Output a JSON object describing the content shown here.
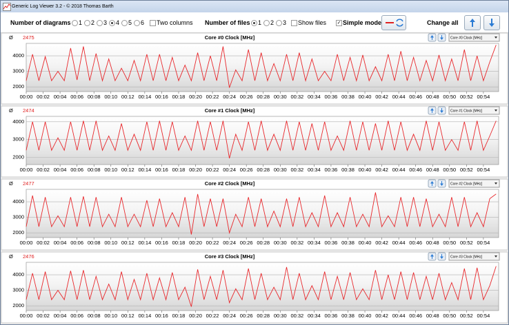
{
  "window": {
    "title": "Generic Log Viewer 3.2 - © 2018 Thomas Barth"
  },
  "toolbar": {
    "diagrams_label": "Number of diagrams",
    "diagram_options": [
      "1",
      "2",
      "3",
      "4",
      "5",
      "6"
    ],
    "two_columns": "Two columns",
    "files_label": "Number of files",
    "file_options": [
      "1",
      "2",
      "3"
    ],
    "show_files": "Show files",
    "simple_mode": "Simple mode",
    "change_all": "Change all"
  },
  "chart_data": [
    {
      "type": "line",
      "avg_symbol": "Ø",
      "average": 2475,
      "title": "Core #0 Clock [MHz]",
      "selector": "Core #0 Clock [MHz]",
      "color": "#e8262a",
      "x": [
        0,
        0.75,
        1.5,
        2.25,
        3,
        3.75,
        4.5,
        5.25,
        6,
        6.75,
        7.5,
        8.25,
        9,
        9.75,
        10.5,
        11.25,
        12,
        12.75,
        13.5,
        14.25,
        15,
        15.75,
        16.5,
        17.25,
        18,
        18.75,
        19.5,
        20.25,
        21,
        21.75,
        22.5,
        23.25,
        24,
        24.75,
        25.5,
        26.25,
        27,
        27.75,
        28.5,
        29.25,
        30,
        30.75,
        31.5,
        32.25,
        33,
        33.75,
        34.5,
        35.25,
        36,
        36.75,
        37.5,
        38.25,
        39,
        39.75,
        40.5,
        41.25,
        42,
        42.75,
        43.5,
        44.25,
        45,
        45.75,
        46.5,
        47.25,
        48,
        48.75,
        49.5,
        50.25,
        51,
        51.75,
        52.5,
        53.25,
        54,
        54.75,
        55.5
      ],
      "values": [
        2400,
        4100,
        2400,
        3950,
        2400,
        3000,
        2400,
        4500,
        2450,
        4600,
        2400,
        4150,
        2400,
        3800,
        2400,
        3200,
        2400,
        3700,
        2400,
        4100,
        2400,
        4100,
        2400,
        3900,
        2400,
        3400,
        2400,
        4200,
        2400,
        4000,
        2400,
        4600,
        1950,
        3100,
        2400,
        4400,
        2400,
        4200,
        2400,
        3500,
        2400,
        4100,
        2400,
        4200,
        2400,
        3800,
        2400,
        3000,
        2400,
        4100,
        2400,
        3900,
        2400,
        4050,
        2400,
        3300,
        2400,
        4100,
        2400,
        4300,
        2400,
        3900,
        2400,
        3700,
        2400,
        4050,
        2400,
        3800,
        2400,
        4400,
        2400,
        4000,
        2400,
        3600,
        4700
      ],
      "xlim": [
        0,
        55.8
      ],
      "ylim": [
        1700,
        4800
      ],
      "yticks": [
        2000,
        3000,
        4000
      ],
      "xticks": [
        {
          "value": 0,
          "label": "00:00"
        },
        {
          "value": 2,
          "label": "00:02"
        },
        {
          "value": 4,
          "label": "00:04"
        },
        {
          "value": 6,
          "label": "00:06"
        },
        {
          "value": 8,
          "label": "00:08"
        },
        {
          "value": 10,
          "label": "00:10"
        },
        {
          "value": 12,
          "label": "00:12"
        },
        {
          "value": 14,
          "label": "00:14"
        },
        {
          "value": 16,
          "label": "00:16"
        },
        {
          "value": 18,
          "label": "00:18"
        },
        {
          "value": 20,
          "label": "00:20"
        },
        {
          "value": 22,
          "label": "00:22"
        },
        {
          "value": 24,
          "label": "00:24"
        },
        {
          "value": 26,
          "label": "00:26"
        },
        {
          "value": 28,
          "label": "00:28"
        },
        {
          "value": 30,
          "label": "00:30"
        },
        {
          "value": 32,
          "label": "00:32"
        },
        {
          "value": 34,
          "label": "00:34"
        },
        {
          "value": 36,
          "label": "00:36"
        },
        {
          "value": 38,
          "label": "00:38"
        },
        {
          "value": 40,
          "label": "00:40"
        },
        {
          "value": 42,
          "label": "00:42"
        },
        {
          "value": 44,
          "label": "00:44"
        },
        {
          "value": 46,
          "label": "00:46"
        },
        {
          "value": 48,
          "label": "00:48"
        },
        {
          "value": 50,
          "label": "00:50"
        },
        {
          "value": 52,
          "label": "00:52"
        },
        {
          "value": 54,
          "label": "00:54"
        }
      ],
      "grid": true
    },
    {
      "type": "line",
      "avg_symbol": "Ø",
      "average": 2474,
      "title": "Core #1 Clock [MHz]",
      "selector": "Core #1 Clock [MHz]",
      "color": "#e8262a",
      "x": [
        0,
        0.75,
        1.5,
        2.25,
        3,
        3.75,
        4.5,
        5.25,
        6,
        6.75,
        7.5,
        8.25,
        9,
        9.75,
        10.5,
        11.25,
        12,
        12.75,
        13.5,
        14.25,
        15,
        15.75,
        16.5,
        17.25,
        18,
        18.75,
        19.5,
        20.25,
        21,
        21.75,
        22.5,
        23.25,
        24,
        24.75,
        25.5,
        26.25,
        27,
        27.75,
        28.5,
        29.25,
        30,
        30.75,
        31.5,
        32.25,
        33,
        33.75,
        34.5,
        35.25,
        36,
        36.75,
        37.5,
        38.25,
        39,
        39.75,
        40.5,
        41.25,
        42,
        42.75,
        43.5,
        44.25,
        45,
        45.75,
        46.5,
        47.25,
        48,
        48.75,
        49.5,
        50.25,
        51,
        51.75,
        52.5,
        53.25,
        54,
        54.75,
        55.5
      ],
      "values": [
        2400,
        4000,
        2400,
        4000,
        2400,
        3100,
        2400,
        4000,
        2400,
        4050,
        2400,
        4050,
        2400,
        3200,
        2400,
        3900,
        2400,
        3300,
        2400,
        4000,
        2400,
        4050,
        2400,
        4000,
        2400,
        3200,
        2400,
        4050,
        2400,
        4000,
        2400,
        4050,
        1950,
        3300,
        2400,
        4000,
        2400,
        4050,
        2400,
        3300,
        2400,
        4050,
        2400,
        4000,
        2400,
        3900,
        2400,
        4000,
        2400,
        3200,
        2400,
        4050,
        2400,
        4000,
        2400,
        3900,
        2400,
        4050,
        2400,
        4000,
        2400,
        3300,
        2400,
        4050,
        2400,
        4000,
        2400,
        3000,
        2400,
        4000,
        2400,
        4050,
        2400,
        3200,
        4050
      ],
      "xlim": [
        0,
        55.8
      ],
      "ylim": [
        1600,
        4300
      ],
      "yticks": [
        2000,
        3000,
        4000
      ],
      "xticks": [
        {
          "value": 0,
          "label": "00:00"
        },
        {
          "value": 2,
          "label": "00:02"
        },
        {
          "value": 4,
          "label": "00:04"
        },
        {
          "value": 6,
          "label": "00:06"
        },
        {
          "value": 8,
          "label": "00:08"
        },
        {
          "value": 10,
          "label": "00:10"
        },
        {
          "value": 12,
          "label": "00:12"
        },
        {
          "value": 14,
          "label": "00:14"
        },
        {
          "value": 16,
          "label": "00:16"
        },
        {
          "value": 18,
          "label": "00:18"
        },
        {
          "value": 20,
          "label": "00:20"
        },
        {
          "value": 22,
          "label": "00:22"
        },
        {
          "value": 24,
          "label": "00:24"
        },
        {
          "value": 26,
          "label": "00:26"
        },
        {
          "value": 28,
          "label": "00:28"
        },
        {
          "value": 30,
          "label": "00:30"
        },
        {
          "value": 32,
          "label": "00:32"
        },
        {
          "value": 34,
          "label": "00:34"
        },
        {
          "value": 36,
          "label": "00:36"
        },
        {
          "value": 38,
          "label": "00:38"
        },
        {
          "value": 40,
          "label": "00:40"
        },
        {
          "value": 42,
          "label": "00:42"
        },
        {
          "value": 44,
          "label": "00:44"
        },
        {
          "value": 46,
          "label": "00:46"
        },
        {
          "value": 48,
          "label": "00:48"
        },
        {
          "value": 50,
          "label": "00:50"
        },
        {
          "value": 52,
          "label": "00:52"
        },
        {
          "value": 54,
          "label": "00:54"
        }
      ],
      "grid": true
    },
    {
      "type": "line",
      "avg_symbol": "Ø",
      "average": 2477,
      "title": "Core #2 Clock [MHz]",
      "selector": "Core #2 Clock [MHz]",
      "color": "#e8262a",
      "x": [
        0,
        0.75,
        1.5,
        2.25,
        3,
        3.75,
        4.5,
        5.25,
        6,
        6.75,
        7.5,
        8.25,
        9,
        9.75,
        10.5,
        11.25,
        12,
        12.75,
        13.5,
        14.25,
        15,
        15.75,
        16.5,
        17.25,
        18,
        18.75,
        19.5,
        20.25,
        21,
        21.75,
        22.5,
        23.25,
        24,
        24.75,
        25.5,
        26.25,
        27,
        27.75,
        28.5,
        29.25,
        30,
        30.75,
        31.5,
        32.25,
        33,
        33.75,
        34.5,
        35.25,
        36,
        36.75,
        37.5,
        38.25,
        39,
        39.75,
        40.5,
        41.25,
        42,
        42.75,
        43.5,
        44.25,
        45,
        45.75,
        46.5,
        47.25,
        48,
        48.75,
        49.5,
        50.25,
        51,
        51.75,
        52.5,
        53.25,
        54,
        54.75,
        55.5
      ],
      "values": [
        2400,
        4400,
        2400,
        4300,
        2400,
        3100,
        2400,
        4300,
        2400,
        4350,
        2400,
        4300,
        2400,
        3200,
        2400,
        4300,
        2400,
        3200,
        2400,
        4100,
        2400,
        4200,
        2400,
        3300,
        2400,
        4300,
        1900,
        4500,
        2400,
        4200,
        2400,
        4200,
        2000,
        3200,
        2400,
        4300,
        2400,
        4200,
        2400,
        3400,
        2400,
        4200,
        2400,
        4300,
        2400,
        3300,
        2400,
        4400,
        2400,
        3300,
        2400,
        4300,
        2400,
        3200,
        2400,
        4600,
        2400,
        3100,
        2400,
        4300,
        2400,
        4300,
        2400,
        4200,
        2400,
        3200,
        2400,
        4300,
        2400,
        4300,
        2400,
        3300,
        2400,
        4200,
        4500
      ],
      "xlim": [
        0,
        55.8
      ],
      "ylim": [
        1700,
        4800
      ],
      "yticks": [
        2000,
        3000,
        4000
      ],
      "xticks": [
        {
          "value": 0,
          "label": "00:00"
        },
        {
          "value": 2,
          "label": "00:02"
        },
        {
          "value": 4,
          "label": "00:04"
        },
        {
          "value": 6,
          "label": "00:06"
        },
        {
          "value": 8,
          "label": "00:08"
        },
        {
          "value": 10,
          "label": "00:10"
        },
        {
          "value": 12,
          "label": "00:12"
        },
        {
          "value": 14,
          "label": "00:14"
        },
        {
          "value": 16,
          "label": "00:16"
        },
        {
          "value": 18,
          "label": "00:18"
        },
        {
          "value": 20,
          "label": "00:20"
        },
        {
          "value": 22,
          "label": "00:22"
        },
        {
          "value": 24,
          "label": "00:24"
        },
        {
          "value": 26,
          "label": "00:26"
        },
        {
          "value": 28,
          "label": "00:28"
        },
        {
          "value": 30,
          "label": "00:30"
        },
        {
          "value": 32,
          "label": "00:32"
        },
        {
          "value": 34,
          "label": "00:34"
        },
        {
          "value": 36,
          "label": "00:36"
        },
        {
          "value": 38,
          "label": "00:38"
        },
        {
          "value": 40,
          "label": "00:40"
        },
        {
          "value": 42,
          "label": "00:42"
        },
        {
          "value": 44,
          "label": "00:44"
        },
        {
          "value": 46,
          "label": "00:46"
        },
        {
          "value": 48,
          "label": "00:48"
        },
        {
          "value": 50,
          "label": "00:50"
        },
        {
          "value": 52,
          "label": "00:52"
        },
        {
          "value": 54,
          "label": "00:54"
        }
      ],
      "grid": true
    },
    {
      "type": "line",
      "avg_symbol": "Ø",
      "average": 2476,
      "title": "Core #3 Clock [MHz]",
      "selector": "Core #3 Clock [MHz]",
      "color": "#e8262a",
      "x": [
        0,
        0.75,
        1.5,
        2.25,
        3,
        3.75,
        4.5,
        5.25,
        6,
        6.75,
        7.5,
        8.25,
        9,
        9.75,
        10.5,
        11.25,
        12,
        12.75,
        13.5,
        14.25,
        15,
        15.75,
        16.5,
        17.25,
        18,
        18.75,
        19.5,
        20.25,
        21,
        21.75,
        22.5,
        23.25,
        24,
        24.75,
        25.5,
        26.25,
        27,
        27.75,
        28.5,
        29.25,
        30,
        30.75,
        31.5,
        32.25,
        33,
        33.75,
        34.5,
        35.25,
        36,
        36.75,
        37.5,
        38.25,
        39,
        39.75,
        40.5,
        41.25,
        42,
        42.75,
        43.5,
        44.25,
        45,
        45.75,
        46.5,
        47.25,
        48,
        48.75,
        49.5,
        50.25,
        51,
        51.75,
        52.5,
        53.25,
        54,
        54.75,
        55.5
      ],
      "values": [
        2400,
        4100,
        2400,
        4200,
        2400,
        3000,
        2400,
        4250,
        2400,
        4300,
        2400,
        3900,
        2400,
        3400,
        2400,
        4200,
        2400,
        3700,
        2400,
        4100,
        2400,
        3800,
        2400,
        4150,
        2400,
        3200,
        1950,
        4350,
        2400,
        3900,
        2400,
        4300,
        2200,
        3100,
        2400,
        4400,
        2400,
        4100,
        2400,
        3200,
        2400,
        4500,
        2400,
        4100,
        2400,
        3300,
        2400,
        4200,
        2400,
        3900,
        2400,
        4150,
        2400,
        3100,
        2400,
        4300,
        2400,
        4000,
        2400,
        4200,
        2400,
        4150,
        2400,
        3900,
        2400,
        4100,
        2400,
        3500,
        2400,
        4400,
        2400,
        4450,
        2400,
        3300,
        4550
      ],
      "xlim": [
        0,
        55.8
      ],
      "ylim": [
        1700,
        4800
      ],
      "yticks": [
        2000,
        3000,
        4000
      ],
      "xticks": [
        {
          "value": 0,
          "label": "00:00"
        },
        {
          "value": 2,
          "label": "00:02"
        },
        {
          "value": 4,
          "label": "00:04"
        },
        {
          "value": 6,
          "label": "00:06"
        },
        {
          "value": 8,
          "label": "00:08"
        },
        {
          "value": 10,
          "label": "00:10"
        },
        {
          "value": 12,
          "label": "00:12"
        },
        {
          "value": 14,
          "label": "00:14"
        },
        {
          "value": 16,
          "label": "00:16"
        },
        {
          "value": 18,
          "label": "00:18"
        },
        {
          "value": 20,
          "label": "00:20"
        },
        {
          "value": 22,
          "label": "00:22"
        },
        {
          "value": 24,
          "label": "00:24"
        },
        {
          "value": 26,
          "label": "00:26"
        },
        {
          "value": 28,
          "label": "00:28"
        },
        {
          "value": 30,
          "label": "00:30"
        },
        {
          "value": 32,
          "label": "00:32"
        },
        {
          "value": 34,
          "label": "00:34"
        },
        {
          "value": 36,
          "label": "00:36"
        },
        {
          "value": 38,
          "label": "00:38"
        },
        {
          "value": 40,
          "label": "00:40"
        },
        {
          "value": 42,
          "label": "00:42"
        },
        {
          "value": 44,
          "label": "00:44"
        },
        {
          "value": 46,
          "label": "00:46"
        },
        {
          "value": 48,
          "label": "00:48"
        },
        {
          "value": 50,
          "label": "00:50"
        },
        {
          "value": 52,
          "label": "00:52"
        },
        {
          "value": 54,
          "label": "00:54"
        }
      ],
      "grid": true
    }
  ]
}
